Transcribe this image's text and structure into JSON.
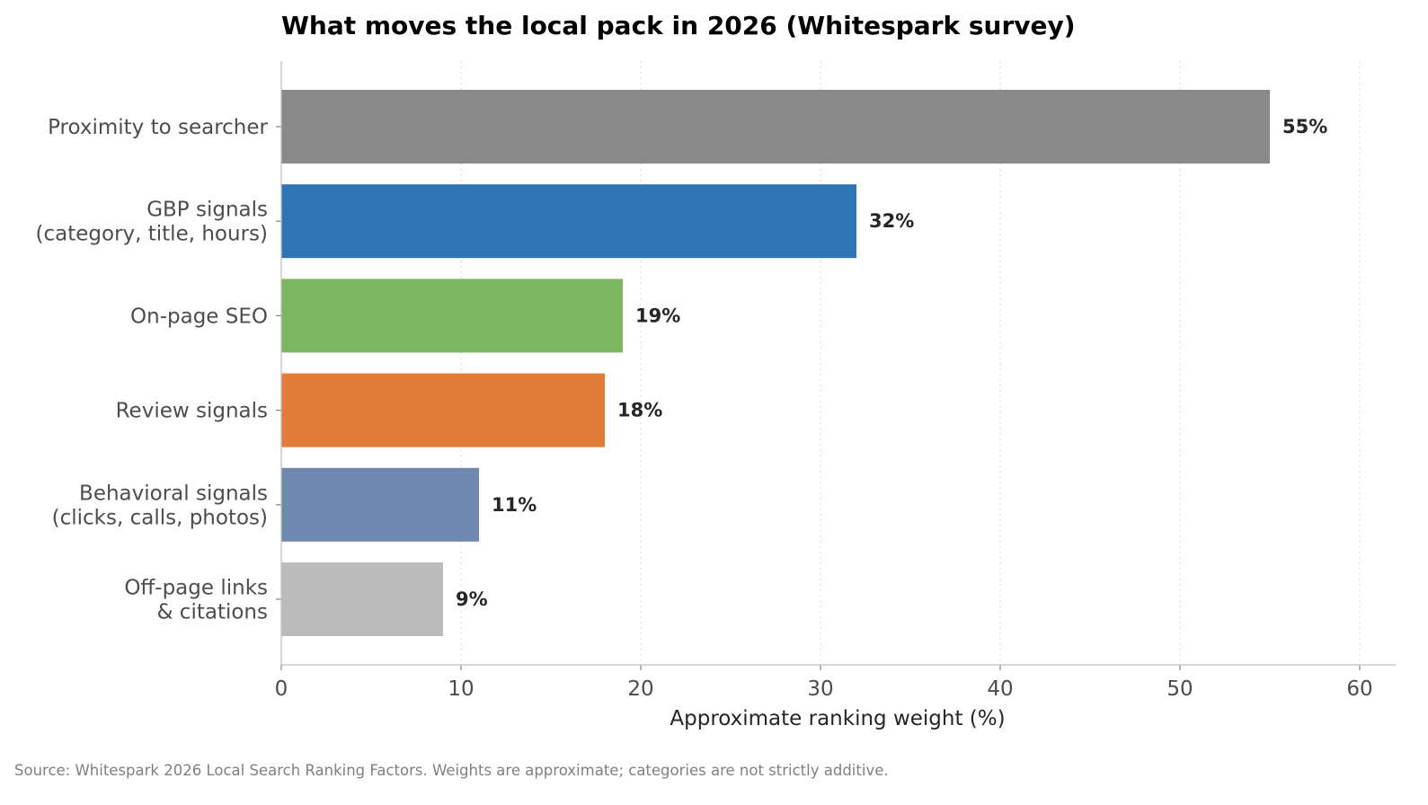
{
  "chart_data": {
    "type": "bar",
    "orientation": "horizontal",
    "title": "What moves the local pack in 2026 (Whitespark survey)",
    "xlabel": "Approximate ranking weight (%)",
    "ylabel": "",
    "xlim": [
      0,
      62
    ],
    "xticks": [
      0,
      10,
      20,
      30,
      40,
      50,
      60
    ],
    "grid": "x-dotted",
    "categories": [
      [
        "Proximity to searcher"
      ],
      [
        "GBP signals",
        "(category, title, hours)"
      ],
      [
        "On-page SEO"
      ],
      [
        "Review signals"
      ],
      [
        "Behavioral signals",
        "(clicks, calls, photos)"
      ],
      [
        "Off-page links",
        "& citations"
      ]
    ],
    "values": [
      55,
      32,
      19,
      18,
      11,
      9
    ],
    "value_labels": [
      "55%",
      "32%",
      "19%",
      "18%",
      "11%",
      "9%"
    ],
    "colors": [
      "#898989",
      "#2e75b6",
      "#7db661",
      "#e07b39",
      "#6e88af",
      "#bbbbbb"
    ]
  },
  "footer": {
    "source": "Source: Whitespark 2026 Local Search Ranking Factors. Weights are approximate; categories are not strictly additive."
  }
}
